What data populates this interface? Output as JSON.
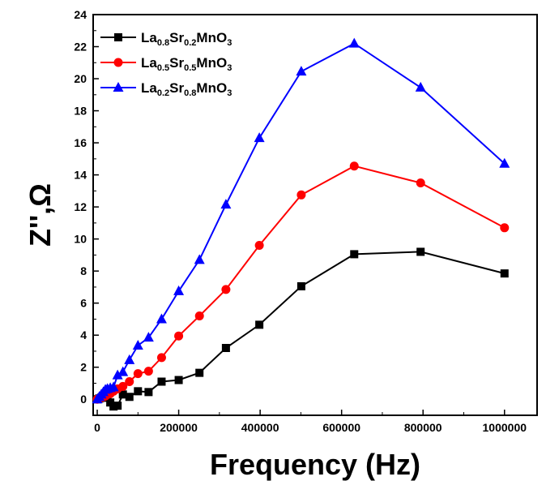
{
  "chart_data": {
    "type": "line",
    "xlabel": "Frequency (Hz)",
    "ylabel": "Z'',Ω",
    "xlim": [
      -10000,
      1080000
    ],
    "ylim": [
      -1,
      24
    ],
    "x_ticks": [
      "0",
      "200000",
      "400000",
      "600000",
      "800000",
      "1000000"
    ],
    "x_tick_values": [
      0,
      200000,
      400000,
      600000,
      800000,
      1000000
    ],
    "y_ticks": [
      "0",
      "2",
      "4",
      "6",
      "8",
      "10",
      "12",
      "14",
      "16",
      "18",
      "20",
      "22",
      "24"
    ],
    "y_tick_values": [
      0,
      2,
      4,
      6,
      8,
      10,
      12,
      14,
      16,
      18,
      20,
      22,
      24
    ],
    "grid": false,
    "legend_position": "top-left",
    "series": [
      {
        "name": "La0.8Sr0.2MnO3",
        "label_parts": [
          [
            "La",
            ""
          ],
          [
            "0.8",
            "sub"
          ],
          [
            "Sr",
            ""
          ],
          [
            "0.2",
            "sub"
          ],
          [
            "MnO",
            ""
          ],
          [
            "3",
            "sub"
          ]
        ],
        "color": "#000000",
        "marker": "square",
        "x": [
          0,
          5000,
          10000,
          15000,
          20000,
          25000,
          32000,
          40000,
          50000,
          63000,
          79000,
          100000,
          126000,
          158000,
          200000,
          251000,
          316000,
          398000,
          501000,
          631000,
          794000,
          1000000
        ],
        "y": [
          0,
          0.05,
          0.1,
          0.1,
          0.15,
          0.1,
          -0.2,
          -0.45,
          -0.4,
          0.3,
          0.15,
          0.5,
          0.45,
          1.1,
          1.2,
          1.65,
          3.2,
          4.65,
          7.05,
          9.05,
          9.2,
          7.85
        ]
      },
      {
        "name": "La0.5Sr0.5MnO3",
        "label_parts": [
          [
            "La",
            ""
          ],
          [
            "0.5",
            "sub"
          ],
          [
            "Sr",
            ""
          ],
          [
            "0.5",
            "sub"
          ],
          [
            "MnO",
            ""
          ],
          [
            "3",
            "sub"
          ]
        ],
        "color": "#ff0000",
        "marker": "circle",
        "x": [
          0,
          5000,
          10000,
          15000,
          20000,
          25000,
          32000,
          40000,
          50000,
          63000,
          79000,
          100000,
          126000,
          158000,
          200000,
          251000,
          316000,
          398000,
          501000,
          631000,
          794000,
          1000000
        ],
        "y": [
          0,
          0.05,
          0.1,
          0.15,
          0.2,
          0.3,
          0.35,
          0.5,
          0.65,
          0.8,
          1.1,
          1.6,
          1.75,
          2.6,
          3.95,
          5.2,
          6.85,
          9.6,
          12.75,
          14.55,
          13.5,
          10.7
        ]
      },
      {
        "name": "La0.2Sr0.8MnO3",
        "label_parts": [
          [
            "La",
            ""
          ],
          [
            "0.2",
            "sub"
          ],
          [
            "Sr",
            ""
          ],
          [
            "0.8",
            "sub"
          ],
          [
            "MnO",
            ""
          ],
          [
            "3",
            "sub"
          ]
        ],
        "color": "#0000ff",
        "marker": "triangle",
        "x": [
          0,
          5000,
          10000,
          15000,
          20000,
          25000,
          32000,
          40000,
          50000,
          63000,
          79000,
          100000,
          126000,
          158000,
          200000,
          251000,
          316000,
          398000,
          501000,
          631000,
          794000,
          1000000
        ],
        "y": [
          0,
          0.15,
          0.3,
          0.45,
          0.6,
          0.65,
          0.7,
          0.75,
          1.5,
          1.7,
          2.45,
          3.35,
          3.85,
          5.0,
          6.75,
          8.7,
          12.15,
          16.3,
          20.45,
          22.2,
          19.45,
          14.7
        ]
      }
    ]
  }
}
